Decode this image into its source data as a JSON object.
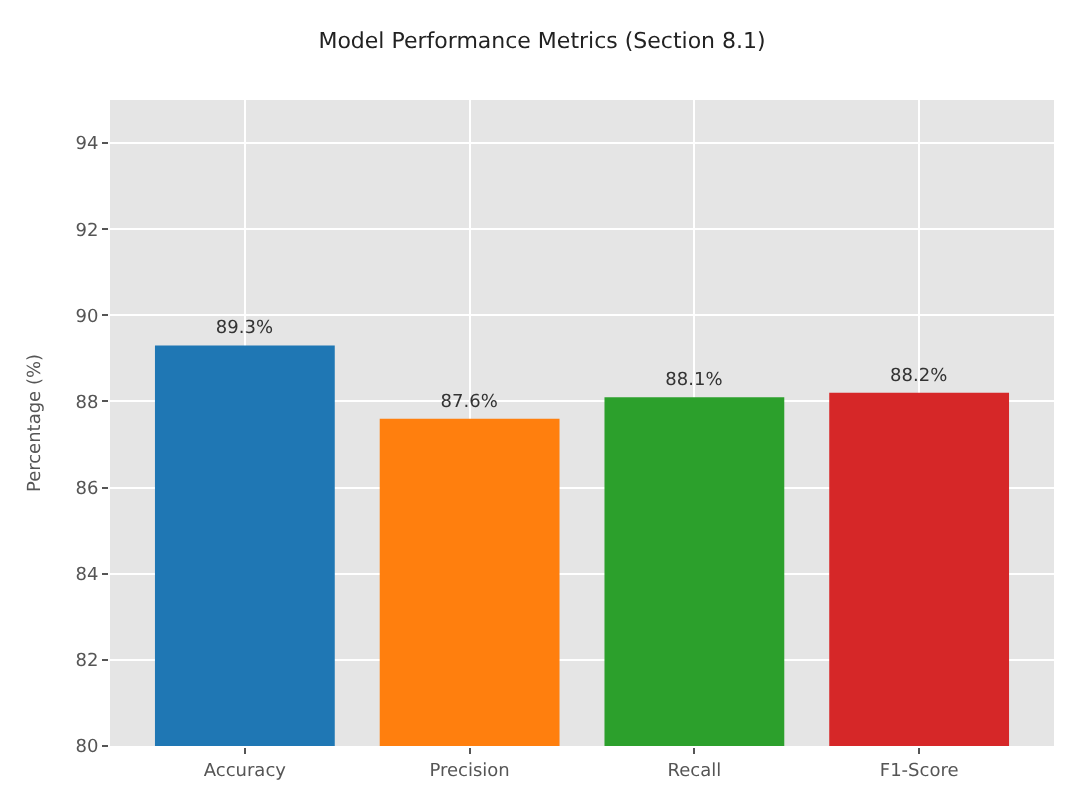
{
  "chart_data": {
    "type": "bar",
    "title": "Model Performance Metrics (Section 8.1)",
    "ylabel": "Percentage (%)",
    "categories": [
      "Accuracy",
      "Precision",
      "Recall",
      "F1-Score"
    ],
    "values": [
      89.3,
      87.6,
      88.1,
      88.2
    ],
    "colors": [
      "#1f77b4",
      "#ff7f0e",
      "#2ca02c",
      "#d62728"
    ],
    "value_labels": [
      "89.3%",
      "87.6%",
      "88.1%",
      "88.2%"
    ],
    "ylim": [
      80,
      95
    ],
    "yticks": [
      80,
      82,
      84,
      86,
      88,
      90,
      92,
      94
    ],
    "grid": true
  }
}
